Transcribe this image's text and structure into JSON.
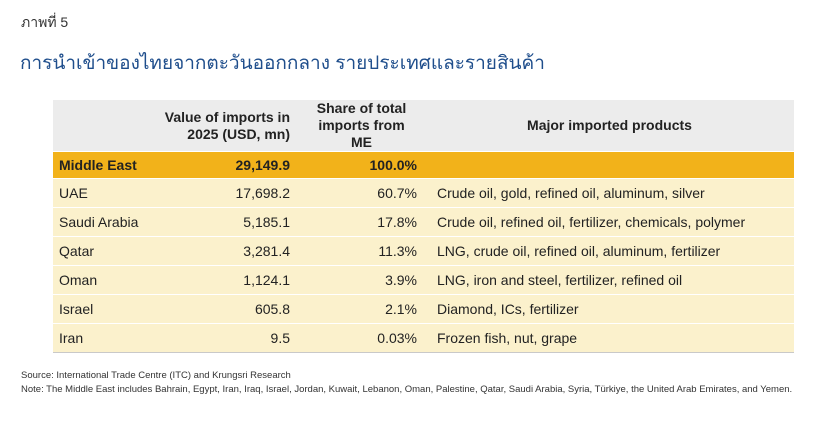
{
  "figure_label": "ภาพที่ 5",
  "title": "การนำเข้าของไทยจากตะวันออกกลาง รายประเทศและรายสินค้า",
  "table": {
    "headers": {
      "country": "",
      "value": "Value of imports in 2025 (USD, mn)",
      "share": "Share of total imports from ME",
      "products": "Major imported products"
    },
    "total": {
      "country": "Middle East",
      "value": "29,149.9",
      "share": "100.0%",
      "products": ""
    },
    "rows": [
      {
        "country": "UAE",
        "value": "17,698.2",
        "share": "60.7%",
        "products": "Crude oil, gold, refined oil, aluminum, silver"
      },
      {
        "country": "Saudi Arabia",
        "value": "5,185.1",
        "share": "17.8%",
        "products": "Crude oil, refined oil, fertilizer, chemicals, polymer"
      },
      {
        "country": "Qatar",
        "value": "3,281.4",
        "share": "11.3%",
        "products": "LNG, crude oil, refined oil, aluminum, fertilizer"
      },
      {
        "country": "Oman",
        "value": "1,124.1",
        "share": "3.9%",
        "products": "LNG, iron and steel, fertilizer, refined oil"
      },
      {
        "country": "Israel",
        "value": "605.8",
        "share": "2.1%",
        "products": "Diamond, ICs, fertilizer"
      },
      {
        "country": "Iran",
        "value": "9.5",
        "share": "0.03%",
        "products": "Frozen fish, nut, grape"
      }
    ]
  },
  "source": "Source: International Trade Centre (ITC) and Krungsri Research",
  "note": "Note: The Middle East includes Bahrain, Egypt, Iran, Iraq, Israel, Jordan, Kuwait, Lebanon, Oman, Palestine, Qatar, Saudi Arabia, Syria, Türkiye, the United Arab Emirates, and Yemen.",
  "colors": {
    "title": "#1f4e8c",
    "header_bg": "#ececec",
    "total_bg": "#f2b21a",
    "row_bg": "#fbf1cc"
  }
}
